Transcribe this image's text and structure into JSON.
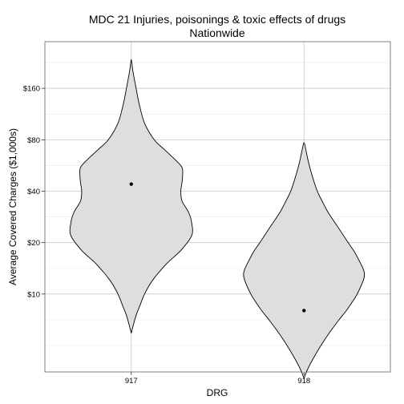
{
  "chart_data": {
    "type": "violin",
    "title": "MDC 21 Injuries, poisonings & toxic effects of drugs",
    "subtitle": "Nationwide",
    "xlabel": "DRG",
    "ylabel": "Average Covered Charges ($1,000s)",
    "y_scale": "log2",
    "y_unit": "$1,000s",
    "ylim": [
      3.5,
      300
    ],
    "categories": [
      "917",
      "918"
    ],
    "y_ticks": [
      {
        "value": 10,
        "label": "$10"
      },
      {
        "value": 20,
        "label": "$20"
      },
      {
        "value": 40,
        "label": "$40"
      },
      {
        "value": 80,
        "label": "$80"
      },
      {
        "value": 160,
        "label": "$160"
      }
    ],
    "grid": true,
    "fill_color": "#dedede",
    "outline_color": "#000000",
    "point_color": "#000000",
    "grid_color": "#c8c8c8",
    "series": [
      {
        "category": "917",
        "point": 44,
        "min": 5.9,
        "max": 236,
        "profile": [
          [
            5.9,
            0.0
          ],
          [
            6.5,
            0.03
          ],
          [
            7.5,
            0.08
          ],
          [
            8.5,
            0.14
          ],
          [
            10,
            0.22
          ],
          [
            12,
            0.35
          ],
          [
            15,
            0.58
          ],
          [
            18,
            0.82
          ],
          [
            22,
            1.0
          ],
          [
            26,
            1.0
          ],
          [
            30,
            0.95
          ],
          [
            35,
            0.84
          ],
          [
            40,
            0.82
          ],
          [
            45,
            0.84
          ],
          [
            50,
            0.85
          ],
          [
            55,
            0.84
          ],
          [
            60,
            0.75
          ],
          [
            70,
            0.55
          ],
          [
            80,
            0.38
          ],
          [
            100,
            0.22
          ],
          [
            130,
            0.13
          ],
          [
            160,
            0.08
          ],
          [
            190,
            0.04
          ],
          [
            210,
            0.02
          ],
          [
            236,
            0.0
          ]
        ]
      },
      {
        "category": "918",
        "point": 8.0,
        "min": 3.2,
        "max": 77,
        "profile": [
          [
            3.2,
            0.0
          ],
          [
            3.5,
            0.04
          ],
          [
            4,
            0.12
          ],
          [
            5,
            0.28
          ],
          [
            6,
            0.43
          ],
          [
            7,
            0.57
          ],
          [
            8,
            0.7
          ],
          [
            9,
            0.8
          ],
          [
            10,
            0.88
          ],
          [
            12,
            0.98
          ],
          [
            13,
            1.0
          ],
          [
            14,
            0.98
          ],
          [
            16,
            0.9
          ],
          [
            18,
            0.82
          ],
          [
            20,
            0.73
          ],
          [
            25,
            0.55
          ],
          [
            30,
            0.4
          ],
          [
            35,
            0.3
          ],
          [
            40,
            0.22
          ],
          [
            50,
            0.13
          ],
          [
            60,
            0.07
          ],
          [
            70,
            0.03
          ],
          [
            77,
            0.0
          ]
        ]
      }
    ]
  }
}
